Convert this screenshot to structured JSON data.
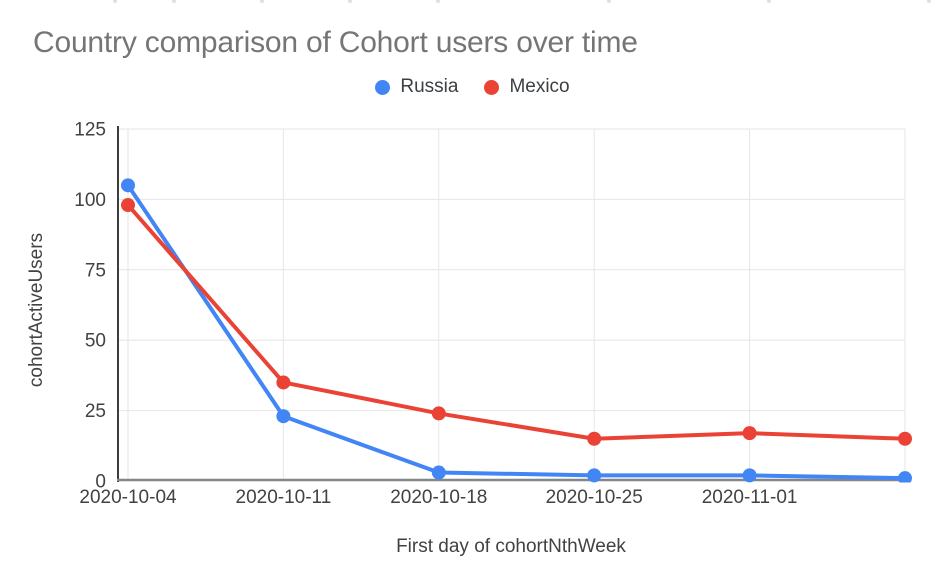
{
  "colors": {
    "background": "#ffffff",
    "grid": "#e6e6e6",
    "axis_y_line": "#3c3c3c",
    "axis_x_line": "#80868b",
    "title_text": "#757575",
    "tick_text": "#424242",
    "legend_text": "#3c4043"
  },
  "chart_data": {
    "type": "line",
    "title": "Country comparison of Cohort users over time",
    "xlabel": "First day of cohortNthWeek",
    "ylabel": "cohortActiveUsers",
    "categories": [
      "2020-10-04",
      "2020-10-11",
      "2020-10-18",
      "2020-10-25",
      "2020-11-01",
      ""
    ],
    "series": [
      {
        "name": "Russia",
        "color": "#4285F4",
        "values": [
          105,
          23,
          3,
          2,
          2,
          1
        ]
      },
      {
        "name": "Mexico",
        "color": "#EA4335",
        "values": [
          98,
          35,
          24,
          15,
          17,
          15
        ]
      }
    ],
    "ylim": [
      0,
      125
    ],
    "yticks": [
      0,
      25,
      50,
      75,
      100,
      125
    ],
    "grid": true,
    "legend_position": "top-center",
    "point_radius": 7,
    "line_width": 4
  }
}
